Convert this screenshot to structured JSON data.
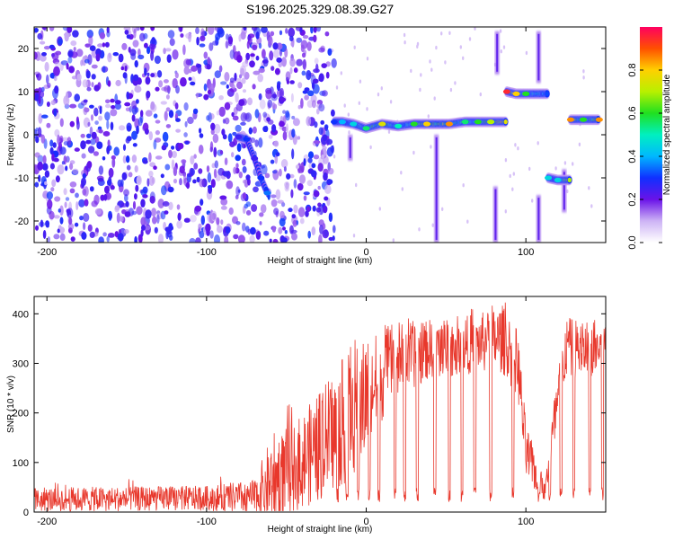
{
  "title": "S196.2025.329.08.39.G27",
  "chart_data": [
    {
      "type": "heatmap",
      "xlabel": "Height of straight line (km)",
      "ylabel": "Frequency (Hz)",
      "xlim": [
        -208,
        150
      ],
      "ylim": [
        -25,
        25
      ],
      "xticks": [
        {
          "value": -200,
          "label": "-200"
        },
        {
          "value": -100,
          "label": "-100"
        },
        {
          "value": 0,
          "label": "0"
        },
        {
          "value": 100,
          "label": "100"
        }
      ],
      "yticks": [
        {
          "value": -20,
          "label": "-20"
        },
        {
          "value": -10,
          "label": "-10"
        },
        {
          "value": 0,
          "label": "0"
        },
        {
          "value": 10,
          "label": "10"
        },
        {
          "value": 20,
          "label": "20"
        }
      ],
      "colorbar": {
        "label": "Normalized spectral amplitude",
        "range": [
          0,
          1
        ],
        "ticks": [
          {
            "value": 0.0,
            "label": "0.0"
          },
          {
            "value": 0.2,
            "label": "0.2"
          },
          {
            "value": 0.4,
            "label": "0.4"
          },
          {
            "value": 0.6,
            "label": "0.6"
          },
          {
            "value": 0.8,
            "label": "0.8"
          }
        ]
      },
      "noise_region": {
        "x": [
          -208,
          -20
        ],
        "freq": [
          -25,
          25
        ],
        "amplitude": 0.25
      },
      "ridge": [
        {
          "x": -80,
          "freq": -0.5,
          "amp": 0.25
        },
        {
          "x": -75,
          "freq": -1.0,
          "amp": 0.3
        },
        {
          "x": -70,
          "freq": -5.5,
          "amp": 0.25
        },
        {
          "x": -66,
          "freq": -10.0,
          "amp": 0.3
        },
        {
          "x": -62,
          "freq": -13.5,
          "amp": 0.35
        },
        {
          "x": -20,
          "freq": 3.0,
          "amp": 0.3
        },
        {
          "x": -15,
          "freq": 3.0,
          "amp": 0.4
        },
        {
          "x": -8,
          "freq": 2.5,
          "amp": 0.45
        },
        {
          "x": 0,
          "freq": 1.5,
          "amp": 0.55
        },
        {
          "x": 10,
          "freq": 2.5,
          "amp": 0.75
        },
        {
          "x": 20,
          "freq": 2.0,
          "amp": 0.5
        },
        {
          "x": 30,
          "freq": 2.5,
          "amp": 0.6
        },
        {
          "x": 38,
          "freq": 2.5,
          "amp": 0.8
        },
        {
          "x": 52,
          "freq": 2.5,
          "amp": 0.85
        },
        {
          "x": 62,
          "freq": 3.0,
          "amp": 0.55
        },
        {
          "x": 70,
          "freq": 3.0,
          "amp": 0.6
        },
        {
          "x": 78,
          "freq": 3.0,
          "amp": 0.7
        },
        {
          "x": 88,
          "freq": 10.0,
          "amp": 0.95
        },
        {
          "x": 94,
          "freq": 9.5,
          "amp": 0.8
        },
        {
          "x": 100,
          "freq": 9.5,
          "amp": 0.6
        },
        {
          "x": 114,
          "freq": -10.0,
          "amp": 0.45
        },
        {
          "x": 120,
          "freq": -10.5,
          "amp": 0.45
        },
        {
          "x": 128,
          "freq": 3.5,
          "amp": 0.85
        },
        {
          "x": 136,
          "freq": 3.5,
          "amp": 0.6
        },
        {
          "x": 146,
          "freq": 3.5,
          "amp": 0.85
        }
      ],
      "streaks": [
        {
          "x": 44,
          "from": 0,
          "to": -25
        },
        {
          "x": 82,
          "from": 24,
          "to": 14
        },
        {
          "x": 81,
          "from": -12,
          "to": -25
        },
        {
          "x": 108,
          "from": 24,
          "to": 12
        },
        {
          "x": 108,
          "from": -14,
          "to": -25
        },
        {
          "x": 124,
          "from": -8,
          "to": -18
        },
        {
          "x": -10,
          "from": 0,
          "to": -6
        }
      ]
    },
    {
      "type": "line",
      "xlabel": "Height of straight line (km)",
      "ylabel": "SNR (10 * v/v)",
      "xlim": [
        -208,
        150
      ],
      "ylim": [
        0,
        435
      ],
      "xticks": [
        {
          "value": -200,
          "label": "-200"
        },
        {
          "value": -100,
          "label": "-100"
        },
        {
          "value": 0,
          "label": "0"
        },
        {
          "value": 100,
          "label": "100"
        }
      ],
      "yticks": [
        {
          "value": 0,
          "label": "0"
        },
        {
          "value": 100,
          "label": "100"
        },
        {
          "value": 200,
          "label": "200"
        },
        {
          "value": 300,
          "label": "300"
        },
        {
          "value": 400,
          "label": "400"
        }
      ],
      "series": [
        {
          "name": "SNR",
          "color": "#e8382c",
          "envelope": [
            {
              "x": -208,
              "base": 25,
              "amp": 25
            },
            {
              "x": -100,
              "base": 28,
              "amp": 25
            },
            {
              "x": -70,
              "base": 30,
              "amp": 35
            },
            {
              "x": -60,
              "base": 60,
              "amp": 90
            },
            {
              "x": -45,
              "base": 90,
              "amp": 90
            },
            {
              "x": -30,
              "base": 130,
              "amp": 110
            },
            {
              "x": -15,
              "base": 180,
              "amp": 130
            },
            {
              "x": 0,
              "base": 230,
              "amp": 120
            },
            {
              "x": 15,
              "base": 300,
              "amp": 80
            },
            {
              "x": 40,
              "base": 330,
              "amp": 60
            },
            {
              "x": 70,
              "base": 340,
              "amp": 60
            },
            {
              "x": 85,
              "base": 350,
              "amp": 70
            },
            {
              "x": 95,
              "base": 300,
              "amp": 70
            },
            {
              "x": 100,
              "base": 120,
              "amp": 60
            },
            {
              "x": 112,
              "base": 40,
              "amp": 20
            },
            {
              "x": 118,
              "base": 180,
              "amp": 60
            },
            {
              "x": 125,
              "base": 330,
              "amp": 60
            },
            {
              "x": 150,
              "base": 330,
              "amp": 60
            }
          ],
          "dropouts": [
            -18,
            -12,
            -5,
            2,
            8,
            18,
            24,
            32,
            43,
            52,
            60,
            68,
            78,
            92,
            108,
            115,
            122,
            130,
            140,
            148
          ]
        }
      ]
    }
  ]
}
